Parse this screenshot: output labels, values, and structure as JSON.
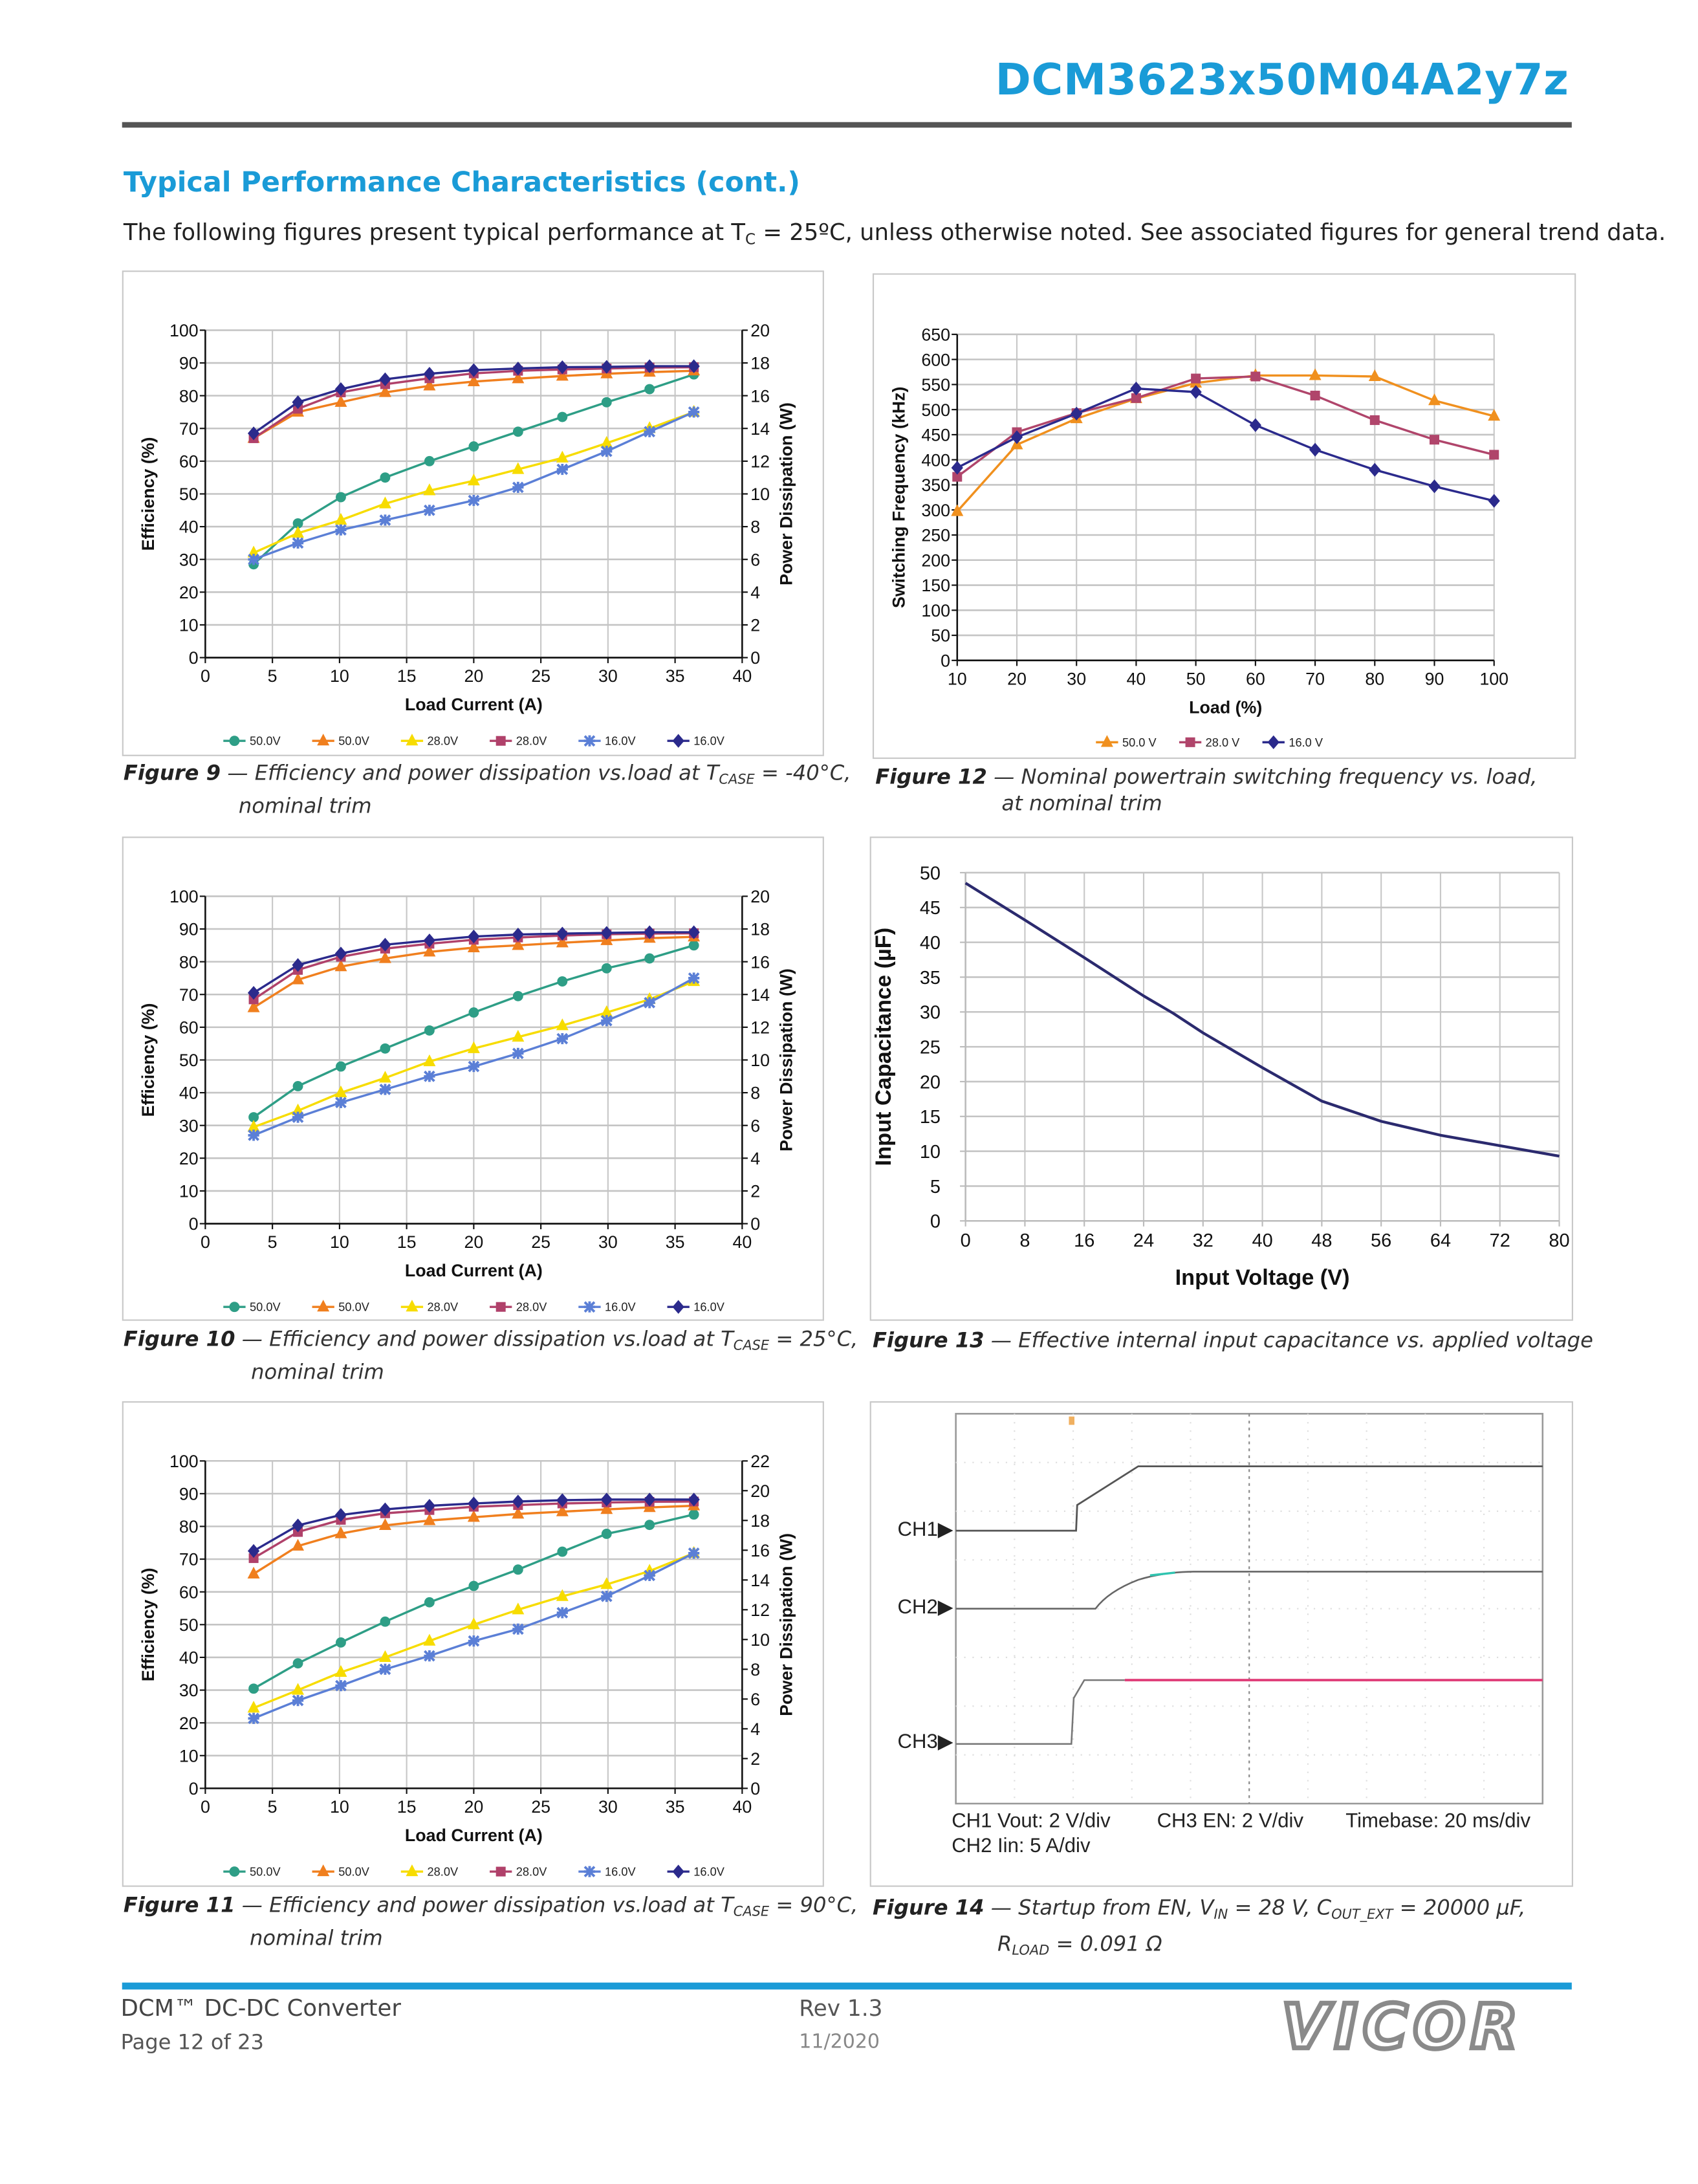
{
  "header": {
    "title": "DCM3623x50M04A2y7z"
  },
  "section": {
    "heading": "Typical Performance Characteristics (cont.)",
    "intro_a": "The following figures present typical performance at T",
    "intro_sub": "C",
    "intro_b": " = 25ºC, unless otherwise noted. See associated figures for general trend data."
  },
  "captions": {
    "fig9": {
      "label": "Figure 9",
      "a": " — Efficiency and power dissipation vs.load at T",
      "sub": "CASE",
      "b": " = -40°C,",
      "line2": "nominal trim"
    },
    "fig10": {
      "label": "Figure 10",
      "a": " — Efficiency and power dissipation vs.load at T",
      "sub": "CASE",
      "b": " = 25°C,",
      "line2": "nominal trim"
    },
    "fig11": {
      "label": "Figure 11",
      "a": " — Efficiency and power dissipation vs.load at T",
      "sub": "CASE",
      "b": " = 90°C,",
      "line2": "nominal trim"
    },
    "fig12": {
      "label": "Figure 12",
      "a": " — Nominal powertrain switching frequency vs. load,",
      "line2": "at nominal trim"
    },
    "fig13": {
      "label": "Figure 13",
      "a": " — Effective internal input capacitance vs. applied voltage"
    },
    "fig14": {
      "label": "Figure 14",
      "a": " — Startup from EN, V",
      "sub1": "IN",
      "b": " = 28 V, C",
      "sub2": "OUT_EXT",
      "c": " = 20000 µF,",
      "l2a": "R",
      "l2sub": "LOAD",
      "l2b": " = 0.091 Ω"
    }
  },
  "scope": {
    "ch1": "CH1",
    "ch2": "CH2",
    "ch3": "CH3",
    "ch1_scale": "CH1 Vout: 2 V/div",
    "ch2_scale": "CH2 Iin: 5 A/div",
    "ch3_scale": "CH3 EN: 2 V/div",
    "timebase": "Timebase: 20 ms/div",
    "colors": {
      "ch1": "#555555",
      "ch2": "#2fc4b0",
      "ch3": "#e0407a"
    }
  },
  "footer": {
    "product": "DCM™ DC-DC Converter",
    "page": "Page 12 of 23",
    "rev": "Rev 1.3",
    "date": "11/2020",
    "logo": "VICOR"
  },
  "chart_data": [
    {
      "type": "line",
      "xlabel": "Load Current (A)",
      "ylabel": "Efficiency (%)",
      "y2label": "Power Dissipation (W)",
      "xlim": [
        0,
        40
      ],
      "ylim": [
        0,
        100
      ],
      "y2lim": [
        0,
        20
      ],
      "xticks": [
        "0",
        "5",
        "10",
        "15",
        "20",
        "25",
        "30",
        "35",
        "40"
      ],
      "yticks": [
        "0",
        "10",
        "20",
        "30",
        "40",
        "50",
        "60",
        "70",
        "80",
        "90",
        "100"
      ],
      "y2ticks": [
        "0",
        "2",
        "4",
        "6",
        "8",
        "10",
        "12",
        "14",
        "16",
        "18",
        "20"
      ],
      "grid": true,
      "legend": "bottom",
      "x": [
        3.6,
        6.9,
        10.1,
        13.4,
        16.7,
        20,
        23.3,
        26.6,
        29.9,
        33.1,
        36.4
      ],
      "series": [
        {
          "name": "50.0V",
          "axis": "right",
          "color": "#2e9e86",
          "marker": "circle",
          "values": [
            5.7,
            8.2,
            9.8,
            11.0,
            12.0,
            12.9,
            13.8,
            14.7,
            15.6,
            16.4,
            17.3
          ]
        },
        {
          "name": "50.0V",
          "axis": "left",
          "color": "#f07f1e",
          "marker": "triangle",
          "values": [
            67,
            75,
            78,
            81,
            83,
            84.3,
            85.2,
            86,
            86.7,
            87.2,
            87.6
          ]
        },
        {
          "name": "28.0V",
          "axis": "right",
          "color": "#f7dc00",
          "marker": "triangle",
          "values": [
            6.4,
            7.6,
            8.4,
            9.4,
            10.2,
            10.8,
            11.5,
            12.2,
            13.1,
            14.0,
            15.0
          ]
        },
        {
          "name": "28.0V",
          "axis": "left",
          "color": "#b0416a",
          "marker": "square",
          "values": [
            67,
            76,
            81,
            83.5,
            85.3,
            86.8,
            87.6,
            88,
            88.3,
            88.6,
            88.7
          ]
        },
        {
          "name": "16.0V",
          "axis": "right",
          "color": "#5b7fd6",
          "marker": "star",
          "values": [
            6.0,
            7.0,
            7.8,
            8.4,
            9.0,
            9.6,
            10.4,
            11.5,
            12.6,
            13.8,
            15.0
          ]
        },
        {
          "name": "16.0V",
          "axis": "left",
          "color": "#2b2a8c",
          "marker": "diamond",
          "values": [
            68.5,
            78,
            82,
            85,
            86.7,
            87.8,
            88.3,
            88.7,
            88.8,
            89,
            89
          ]
        }
      ]
    },
    {
      "type": "line",
      "xlabel": "Load (%)",
      "ylabel": "Switching Frequency (kHz)",
      "xlim": [
        10,
        100
      ],
      "ylim": [
        0,
        650
      ],
      "xticks": [
        "10",
        "20",
        "30",
        "40",
        "50",
        "60",
        "70",
        "80",
        "90",
        "100"
      ],
      "yticks": [
        "0",
        "50",
        "100",
        "150",
        "200",
        "250",
        "300",
        "350",
        "400",
        "450",
        "500",
        "550",
        "600",
        "650"
      ],
      "grid": true,
      "legend": "bottom",
      "x": [
        10,
        20,
        30,
        40,
        50,
        60,
        70,
        80,
        90,
        100
      ],
      "series": [
        {
          "name": "50.0 V",
          "axis": "left",
          "color": "#f0901e",
          "marker": "triangle",
          "values": [
            297,
            430,
            482,
            522,
            553,
            568,
            568,
            566,
            518,
            487
          ]
        },
        {
          "name": "28.0 V",
          "axis": "left",
          "color": "#b0456b",
          "marker": "square",
          "values": [
            366,
            455,
            493,
            523,
            562,
            566,
            528,
            479,
            440,
            410
          ]
        },
        {
          "name": "16.0 V",
          "axis": "left",
          "color": "#2b2a8c",
          "marker": "diamond",
          "values": [
            384,
            445,
            492,
            542,
            535,
            469,
            420,
            380,
            347,
            318
          ]
        }
      ]
    },
    {
      "type": "line",
      "xlabel": "Load Current (A)",
      "ylabel": "Efficiency (%)",
      "y2label": "Power Dissipation (W)",
      "xlim": [
        0,
        40
      ],
      "ylim": [
        0,
        100
      ],
      "y2lim": [
        0,
        20
      ],
      "xticks": [
        "0",
        "5",
        "10",
        "15",
        "20",
        "25",
        "30",
        "35",
        "40"
      ],
      "yticks": [
        "0",
        "10",
        "20",
        "30",
        "40",
        "50",
        "60",
        "70",
        "80",
        "90",
        "100"
      ],
      "y2ticks": [
        "0",
        "2",
        "4",
        "6",
        "8",
        "10",
        "12",
        "14",
        "16",
        "18",
        "20"
      ],
      "grid": true,
      "legend": "bottom",
      "x": [
        3.6,
        6.9,
        10.1,
        13.4,
        16.7,
        20,
        23.3,
        26.6,
        29.9,
        33.1,
        36.4
      ],
      "series": [
        {
          "name": "50.0V",
          "axis": "right",
          "color": "#2e9e86",
          "marker": "circle",
          "values": [
            6.5,
            8.4,
            9.6,
            10.7,
            11.8,
            12.9,
            13.9,
            14.8,
            15.6,
            16.2,
            17.0
          ]
        },
        {
          "name": "50.0V",
          "axis": "left",
          "color": "#f07f1e",
          "marker": "triangle",
          "values": [
            66,
            74.5,
            78.5,
            81,
            83,
            84.3,
            85,
            85.8,
            86.5,
            87.2,
            87.6
          ]
        },
        {
          "name": "28.0V",
          "axis": "right",
          "color": "#f7dc00",
          "marker": "triangle",
          "values": [
            5.9,
            6.9,
            8.0,
            8.9,
            9.9,
            10.7,
            11.4,
            12.1,
            12.9,
            13.7,
            14.8
          ]
        },
        {
          "name": "28.0V",
          "axis": "left",
          "color": "#b0416a",
          "marker": "square",
          "values": [
            68.5,
            77.5,
            81.5,
            84,
            85.5,
            86.7,
            87.4,
            88,
            88.4,
            88.6,
            88.7
          ]
        },
        {
          "name": "16.0V",
          "axis": "right",
          "color": "#5b7fd6",
          "marker": "star",
          "values": [
            5.4,
            6.5,
            7.4,
            8.2,
            9.0,
            9.6,
            10.4,
            11.3,
            12.4,
            13.5,
            15.0
          ]
        },
        {
          "name": "16.0V",
          "axis": "left",
          "color": "#2b2a8c",
          "marker": "diamond",
          "values": [
            70.5,
            79,
            82.5,
            85.2,
            86.5,
            87.7,
            88.3,
            88.6,
            88.8,
            89,
            89
          ]
        }
      ]
    },
    {
      "type": "line",
      "xlabel": "Input Voltage (V)",
      "ylabel": "Input Capacitance (µF)",
      "xlim": [
        0,
        80
      ],
      "ylim": [
        0,
        50
      ],
      "xticks": [
        "0",
        "8",
        "16",
        "24",
        "32",
        "40",
        "48",
        "56",
        "64",
        "72",
        "80"
      ],
      "yticks": [
        "0",
        "5",
        "10",
        "15",
        "20",
        "25",
        "30",
        "35",
        "40",
        "45",
        "50"
      ],
      "grid": true,
      "x": [
        0,
        8,
        16,
        24,
        28,
        32,
        40,
        48,
        56,
        64,
        72,
        80
      ],
      "series": [
        {
          "axis": "left",
          "color": "#2b2a6e",
          "marker": "none",
          "values": [
            48.5,
            43.2,
            37.8,
            32.3,
            29.8,
            27.0,
            22.0,
            17.2,
            14.3,
            12.3,
            10.8,
            9.3
          ]
        }
      ]
    },
    {
      "type": "line",
      "xlabel": "Load Current (A)",
      "ylabel": "Efficiency (%)",
      "y2label": "Power Dissipation (W)",
      "xlim": [
        0,
        40
      ],
      "ylim": [
        0,
        100
      ],
      "y2lim": [
        0,
        22
      ],
      "xticks": [
        "0",
        "5",
        "10",
        "15",
        "20",
        "25",
        "30",
        "35",
        "40"
      ],
      "yticks": [
        "0",
        "10",
        "20",
        "30",
        "40",
        "50",
        "60",
        "70",
        "80",
        "90",
        "100"
      ],
      "y2ticks": [
        "0",
        "2",
        "4",
        "6",
        "8",
        "10",
        "12",
        "14",
        "16",
        "18",
        "20",
        "22"
      ],
      "grid": true,
      "legend": "bottom",
      "x": [
        3.6,
        6.9,
        10.1,
        13.4,
        16.7,
        20,
        23.3,
        26.6,
        29.9,
        33.1,
        36.4
      ],
      "series": [
        {
          "name": "50.0V",
          "axis": "right",
          "color": "#2e9e86",
          "marker": "circle",
          "values": [
            6.7,
            8.4,
            9.8,
            11.2,
            12.5,
            13.6,
            14.7,
            15.9,
            17.1,
            17.7,
            18.4
          ]
        },
        {
          "name": "50.0V",
          "axis": "left",
          "color": "#f07f1e",
          "marker": "triangle",
          "values": [
            65.5,
            74,
            77.8,
            80.3,
            81.8,
            82.8,
            83.8,
            84.5,
            85.2,
            85.8,
            86.3
          ]
        },
        {
          "name": "28.0V",
          "axis": "right",
          "color": "#f7dc00",
          "marker": "triangle",
          "values": [
            5.4,
            6.6,
            7.8,
            8.8,
            9.9,
            11.0,
            12.0,
            12.9,
            13.7,
            14.6,
            15.8
          ]
        },
        {
          "name": "28.0V",
          "axis": "left",
          "color": "#b0416a",
          "marker": "square",
          "values": [
            70.3,
            78.3,
            82,
            84,
            85,
            86,
            86.5,
            87,
            87.3,
            87.5,
            87.6
          ]
        },
        {
          "name": "16.0V",
          "axis": "right",
          "color": "#5b7fd6",
          "marker": "star",
          "values": [
            4.7,
            5.9,
            6.9,
            8.0,
            8.9,
            9.9,
            10.7,
            11.8,
            12.9,
            14.3,
            15.8
          ]
        },
        {
          "name": "16.0V",
          "axis": "left",
          "color": "#2b2a8c",
          "marker": "diamond",
          "values": [
            72.5,
            80.3,
            83.5,
            85.2,
            86.3,
            87,
            87.6,
            88,
            88.2,
            88.2,
            88.2
          ]
        }
      ]
    }
  ]
}
